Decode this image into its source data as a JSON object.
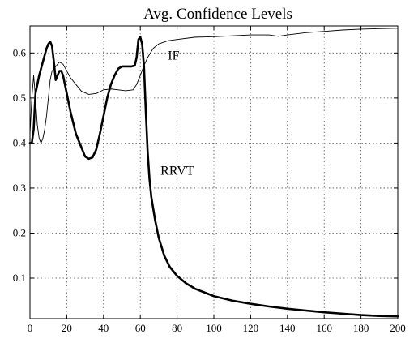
{
  "chart_data": {
    "type": "line",
    "title": "Avg. Confidence Levels",
    "xlabel": "",
    "ylabel": "",
    "xlim": [
      0,
      200
    ],
    "ylim": [
      0.01,
      0.66
    ],
    "grid": true,
    "x_ticks": [
      0,
      20,
      40,
      60,
      80,
      100,
      120,
      140,
      160,
      180,
      200
    ],
    "y_ticks": [
      0.1,
      0.2,
      0.3,
      0.4,
      0.5,
      0.6
    ],
    "x_tick_labels": [
      "0",
      "20",
      "40",
      "60",
      "80",
      "100",
      "120",
      "140",
      "160",
      "180",
      "200"
    ],
    "y_tick_labels": [
      "0.1",
      "0.2",
      "0.3",
      "0.4",
      "0.5",
      "0.6"
    ],
    "series": [
      {
        "name": "IF",
        "line_width": "thin",
        "color": "#000000",
        "points": [
          [
            0,
            0.42
          ],
          [
            1,
            0.5
          ],
          [
            2,
            0.55
          ],
          [
            3,
            0.5
          ],
          [
            4,
            0.44
          ],
          [
            5,
            0.41
          ],
          [
            6,
            0.4
          ],
          [
            7,
            0.41
          ],
          [
            8,
            0.43
          ],
          [
            9,
            0.46
          ],
          [
            10,
            0.5
          ],
          [
            11,
            0.54
          ],
          [
            12,
            0.56
          ],
          [
            14,
            0.57
          ],
          [
            16,
            0.58
          ],
          [
            18,
            0.575
          ],
          [
            20,
            0.56
          ],
          [
            22,
            0.545
          ],
          [
            25,
            0.53
          ],
          [
            28,
            0.515
          ],
          [
            32,
            0.508
          ],
          [
            36,
            0.51
          ],
          [
            40,
            0.518
          ],
          [
            44,
            0.52
          ],
          [
            48,
            0.518
          ],
          [
            52,
            0.516
          ],
          [
            56,
            0.518
          ],
          [
            58,
            0.53
          ],
          [
            60,
            0.55
          ],
          [
            62,
            0.572
          ],
          [
            64,
            0.59
          ],
          [
            67,
            0.61
          ],
          [
            70,
            0.62
          ],
          [
            75,
            0.627
          ],
          [
            80,
            0.63
          ],
          [
            90,
            0.635
          ],
          [
            100,
            0.636
          ],
          [
            110,
            0.638
          ],
          [
            120,
            0.64
          ],
          [
            130,
            0.64
          ],
          [
            135,
            0.637
          ],
          [
            140,
            0.64
          ],
          [
            150,
            0.645
          ],
          [
            160,
            0.648
          ],
          [
            170,
            0.651
          ],
          [
            180,
            0.653
          ],
          [
            190,
            0.654
          ],
          [
            200,
            0.655
          ]
        ]
      },
      {
        "name": "RRVT",
        "line_width": "thick",
        "color": "#000000",
        "points": [
          [
            0,
            0.4
          ],
          [
            1,
            0.4
          ],
          [
            2,
            0.43
          ],
          [
            3,
            0.51
          ],
          [
            5,
            0.55
          ],
          [
            7,
            0.58
          ],
          [
            9,
            0.61
          ],
          [
            10,
            0.62
          ],
          [
            11,
            0.625
          ],
          [
            12,
            0.615
          ],
          [
            13,
            0.58
          ],
          [
            14,
            0.54
          ],
          [
            15,
            0.55
          ],
          [
            16,
            0.56
          ],
          [
            17,
            0.56
          ],
          [
            18,
            0.55
          ],
          [
            20,
            0.51
          ],
          [
            22,
            0.47
          ],
          [
            25,
            0.42
          ],
          [
            28,
            0.39
          ],
          [
            30,
            0.37
          ],
          [
            32,
            0.365
          ],
          [
            34,
            0.368
          ],
          [
            36,
            0.385
          ],
          [
            38,
            0.42
          ],
          [
            40,
            0.46
          ],
          [
            42,
            0.5
          ],
          [
            44,
            0.53
          ],
          [
            46,
            0.55
          ],
          [
            48,
            0.565
          ],
          [
            50,
            0.57
          ],
          [
            55,
            0.57
          ],
          [
            57,
            0.572
          ],
          [
            58,
            0.59
          ],
          [
            59,
            0.63
          ],
          [
            60,
            0.635
          ],
          [
            61,
            0.62
          ],
          [
            62,
            0.57
          ],
          [
            63,
            0.47
          ],
          [
            64,
            0.38
          ],
          [
            65,
            0.32
          ],
          [
            66,
            0.28
          ],
          [
            68,
            0.23
          ],
          [
            70,
            0.19
          ],
          [
            73,
            0.15
          ],
          [
            76,
            0.125
          ],
          [
            80,
            0.105
          ],
          [
            85,
            0.088
          ],
          [
            90,
            0.076
          ],
          [
            100,
            0.06
          ],
          [
            110,
            0.05
          ],
          [
            120,
            0.043
          ],
          [
            130,
            0.037
          ],
          [
            140,
            0.032
          ],
          [
            150,
            0.028
          ],
          [
            160,
            0.024
          ],
          [
            170,
            0.021
          ],
          [
            180,
            0.018
          ],
          [
            190,
            0.016
          ],
          [
            200,
            0.015
          ]
        ]
      }
    ],
    "annotations": [
      {
        "text": "IF",
        "series": "IF",
        "x": 75,
        "y": 0.585
      },
      {
        "text": "RRVT",
        "series": "RRVT",
        "x": 71,
        "y": 0.33
      }
    ]
  }
}
